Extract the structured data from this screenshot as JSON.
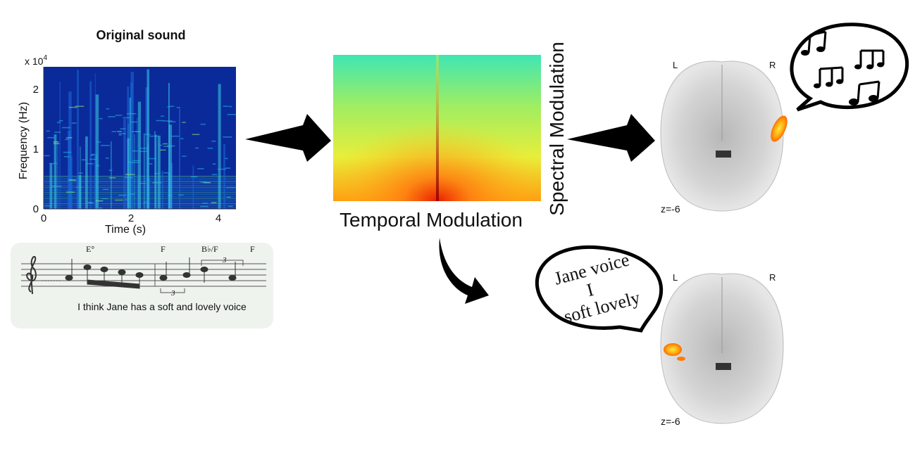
{
  "original_sound": {
    "title": "Original sound",
    "y_multiplier": {
      "base": "x 10",
      "exponent": "4"
    },
    "yticks": [
      0,
      1,
      2
    ],
    "y_label": "Frequency (Hz)",
    "xticks": [
      0,
      2,
      4
    ],
    "x_label": "Time (s)"
  },
  "score": {
    "chords": [
      "E°",
      "F",
      "B♭/F",
      "F"
    ],
    "triplets": [
      3,
      3
    ],
    "lyrics": "I think Jane has a soft and lovely voice"
  },
  "modulation": {
    "x_label": "Temporal Modulation",
    "y_label": "Spectral Modulation"
  },
  "brains": [
    {
      "left": "L",
      "right": "R",
      "slice": "z=-6"
    },
    {
      "left": "L",
      "right": "R",
      "slice": "z=-6"
    }
  ],
  "speech_bubble": {
    "lines": [
      "Jane voice",
      "I",
      "soft lovely"
    ]
  }
}
